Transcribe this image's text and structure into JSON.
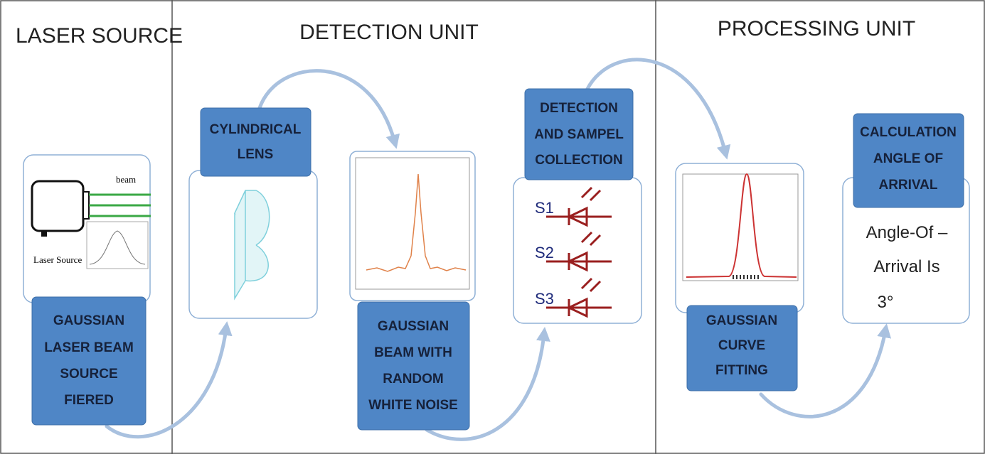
{
  "sections": [
    {
      "title": "LASER SOURCE"
    },
    {
      "title": "DETECTION UNIT"
    },
    {
      "title": "PROCESSING UNIT"
    }
  ],
  "nodes": [
    {
      "lines": [
        "GAUSSIAN",
        "LASER BEAM",
        "SOURCE",
        "FIERED"
      ]
    },
    {
      "lines": [
        "CYLINDRICAL",
        "LENS"
      ]
    },
    {
      "lines": [
        "GAUSSIAN",
        "BEAM WITH",
        "RANDOM",
        "WHITE NOISE"
      ]
    },
    {
      "lines": [
        "DETECTION",
        "AND SAMPEL",
        "COLLECTION"
      ]
    },
    {
      "lines": [
        "GAUSSIAN",
        "CURVE",
        "FITTING"
      ]
    },
    {
      "lines": [
        "CALCULATION",
        "ANGLE OF",
        "ARRIVAL"
      ]
    }
  ],
  "laser_figure": {
    "beam_label": "beam",
    "source_label": "Laser Source"
  },
  "detectors": [
    "S1",
    "S2",
    "S3"
  ],
  "result": {
    "lines": [
      "Angle-Of –",
      "Arrival Is",
      "3°"
    ]
  }
}
